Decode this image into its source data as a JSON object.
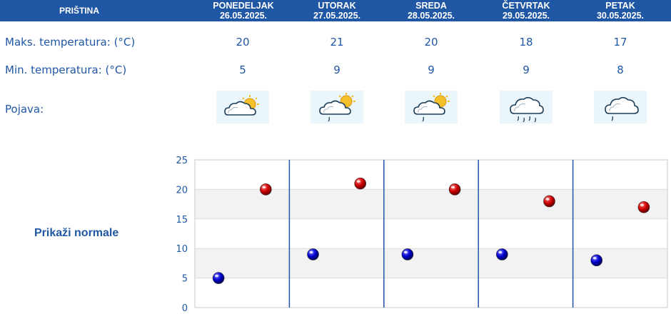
{
  "header": {
    "city": "PRIŠTINA",
    "days": [
      {
        "day": "PONEDELJAK",
        "date": "26.05.2025."
      },
      {
        "day": "UTORAK",
        "date": "27.05.2025."
      },
      {
        "day": "SREDA",
        "date": "28.05.2025."
      },
      {
        "day": "ČETVRTAK",
        "date": "29.05.2025."
      },
      {
        "day": "PETAK",
        "date": "30.05.2025."
      }
    ]
  },
  "rows": {
    "max_label": "Maks. temperatura: (°C)",
    "min_label": "Min. temperatura: (°C)",
    "phenomena_label": "Pojava:"
  },
  "forecast": [
    {
      "max": "20",
      "min": "5",
      "icon": "partly-cloudy-sun-icon"
    },
    {
      "max": "21",
      "min": "9",
      "icon": "partly-cloudy-sun-light-rain-icon"
    },
    {
      "max": "20",
      "min": "9",
      "icon": "partly-cloudy-sun-light-rain-icon"
    },
    {
      "max": "18",
      "min": "9",
      "icon": "cloudy-rain-icon"
    },
    {
      "max": "17",
      "min": "8",
      "icon": "cloudy-light-rain-icon"
    }
  ],
  "show_normals_link": "Prikaži normale",
  "colors": {
    "header_bg": "#1f57a4",
    "text": "#1f57a4",
    "max_marker": "#cc0000",
    "min_marker": "#0000cc",
    "icon_bg": "#eaf6fb"
  },
  "chart_data": {
    "type": "scatter",
    "categories": [
      "26.05.2025.",
      "27.05.2025.",
      "28.05.2025.",
      "29.05.2025.",
      "30.05.2025."
    ],
    "series": [
      {
        "values": [
          20,
          21,
          20,
          18,
          17
        ],
        "color": "#cc0000"
      },
      {
        "values": [
          5,
          9,
          9,
          9,
          8
        ],
        "color": "#0000cc"
      }
    ],
    "ylim": [
      0,
      25
    ],
    "yticks": [
      0,
      5,
      10,
      15,
      20,
      25
    ],
    "grid": "alternating horizontal bands, vertical day separators"
  }
}
